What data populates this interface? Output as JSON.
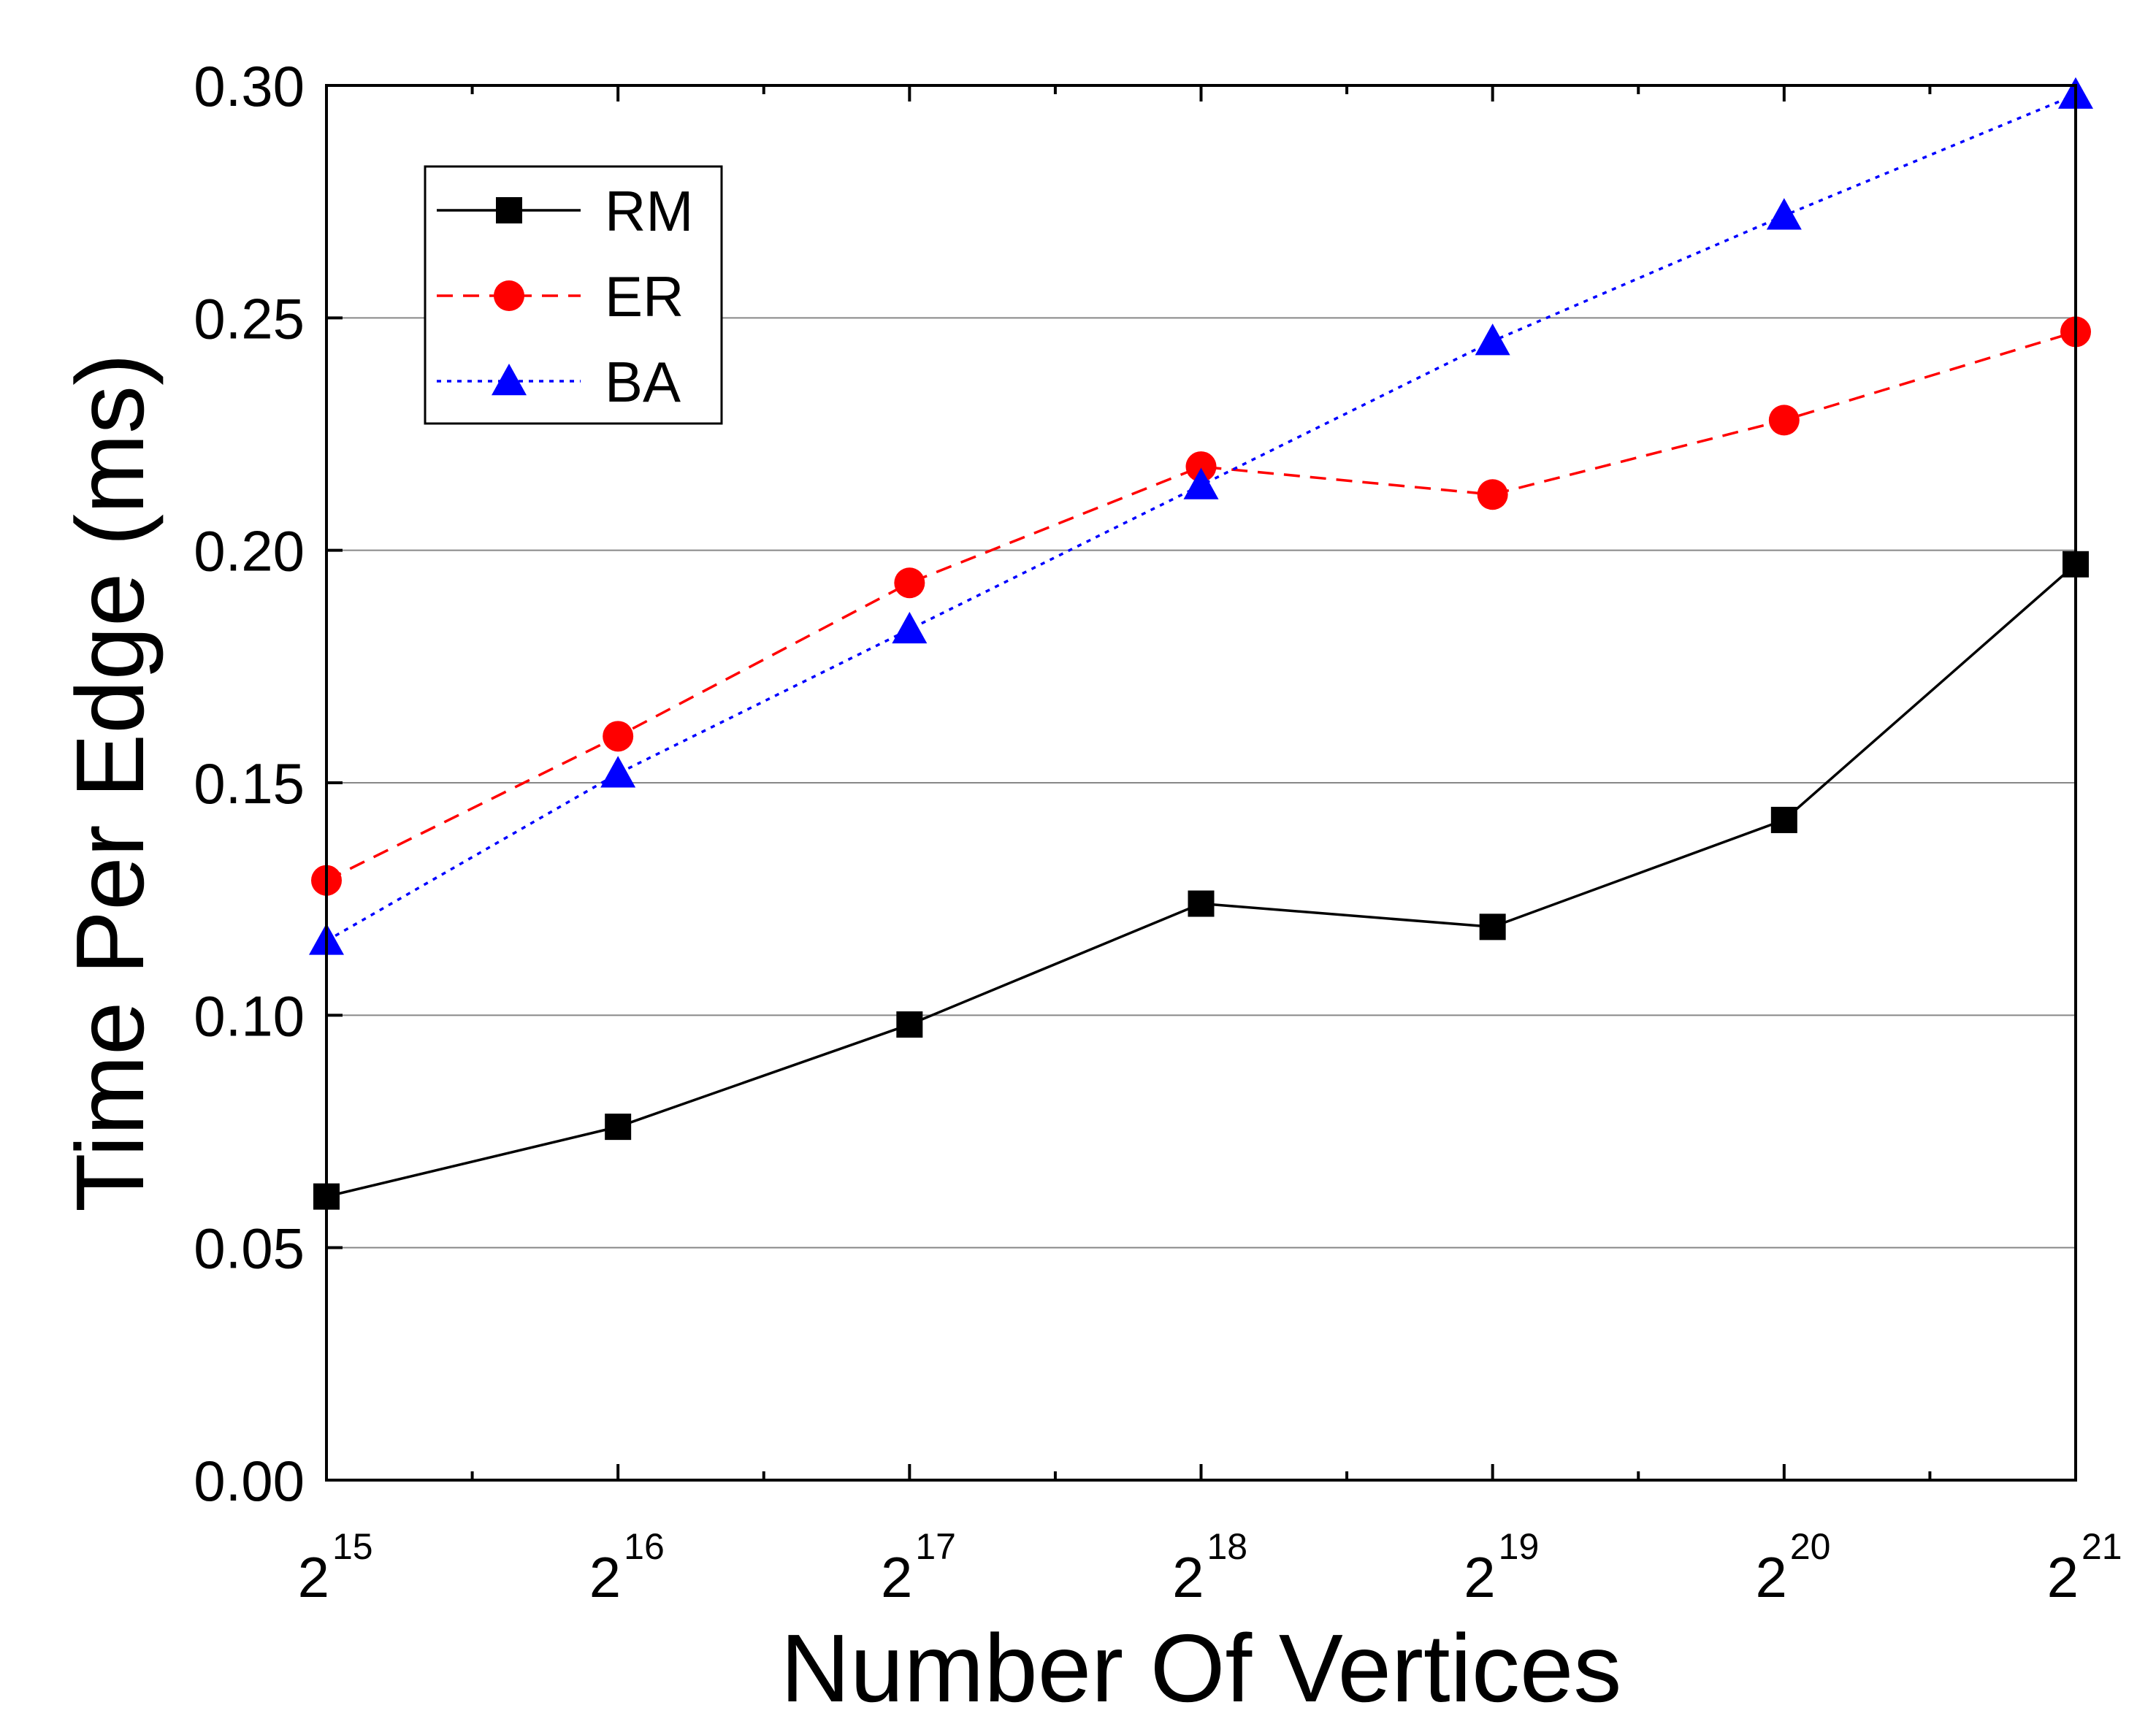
{
  "chart_data": {
    "type": "line",
    "title": "",
    "xlabel": "Number Of Vertices",
    "ylabel": "Time Per Edge (ms)",
    "ylim": [
      0,
      0.3
    ],
    "yticks": [
      "0.00",
      "0.05",
      "0.10",
      "0.15",
      "0.20",
      "0.25",
      "0.30"
    ],
    "x_tick_base": "2",
    "x": [
      15,
      16,
      17,
      18,
      19,
      20,
      21
    ],
    "x_exponents": [
      "15",
      "16",
      "17",
      "18",
      "19",
      "20",
      "21"
    ],
    "grid": "horizontal",
    "legend_position": "top-left",
    "series": [
      {
        "name": "RM",
        "color": "#000000",
        "marker": "square",
        "line": "solid",
        "values": [
          0.061,
          0.076,
          0.098,
          0.124,
          0.119,
          0.142,
          0.197
        ]
      },
      {
        "name": "ER",
        "color": "#ff0000",
        "marker": "circle",
        "line": "dashed",
        "values": [
          0.129,
          0.16,
          0.193,
          0.218,
          0.212,
          0.228,
          0.247
        ]
      },
      {
        "name": "BA",
        "color": "#0000ff",
        "marker": "triangle",
        "line": "dotted",
        "values": [
          0.116,
          0.152,
          0.183,
          0.214,
          0.245,
          0.272,
          0.298
        ]
      }
    ]
  }
}
